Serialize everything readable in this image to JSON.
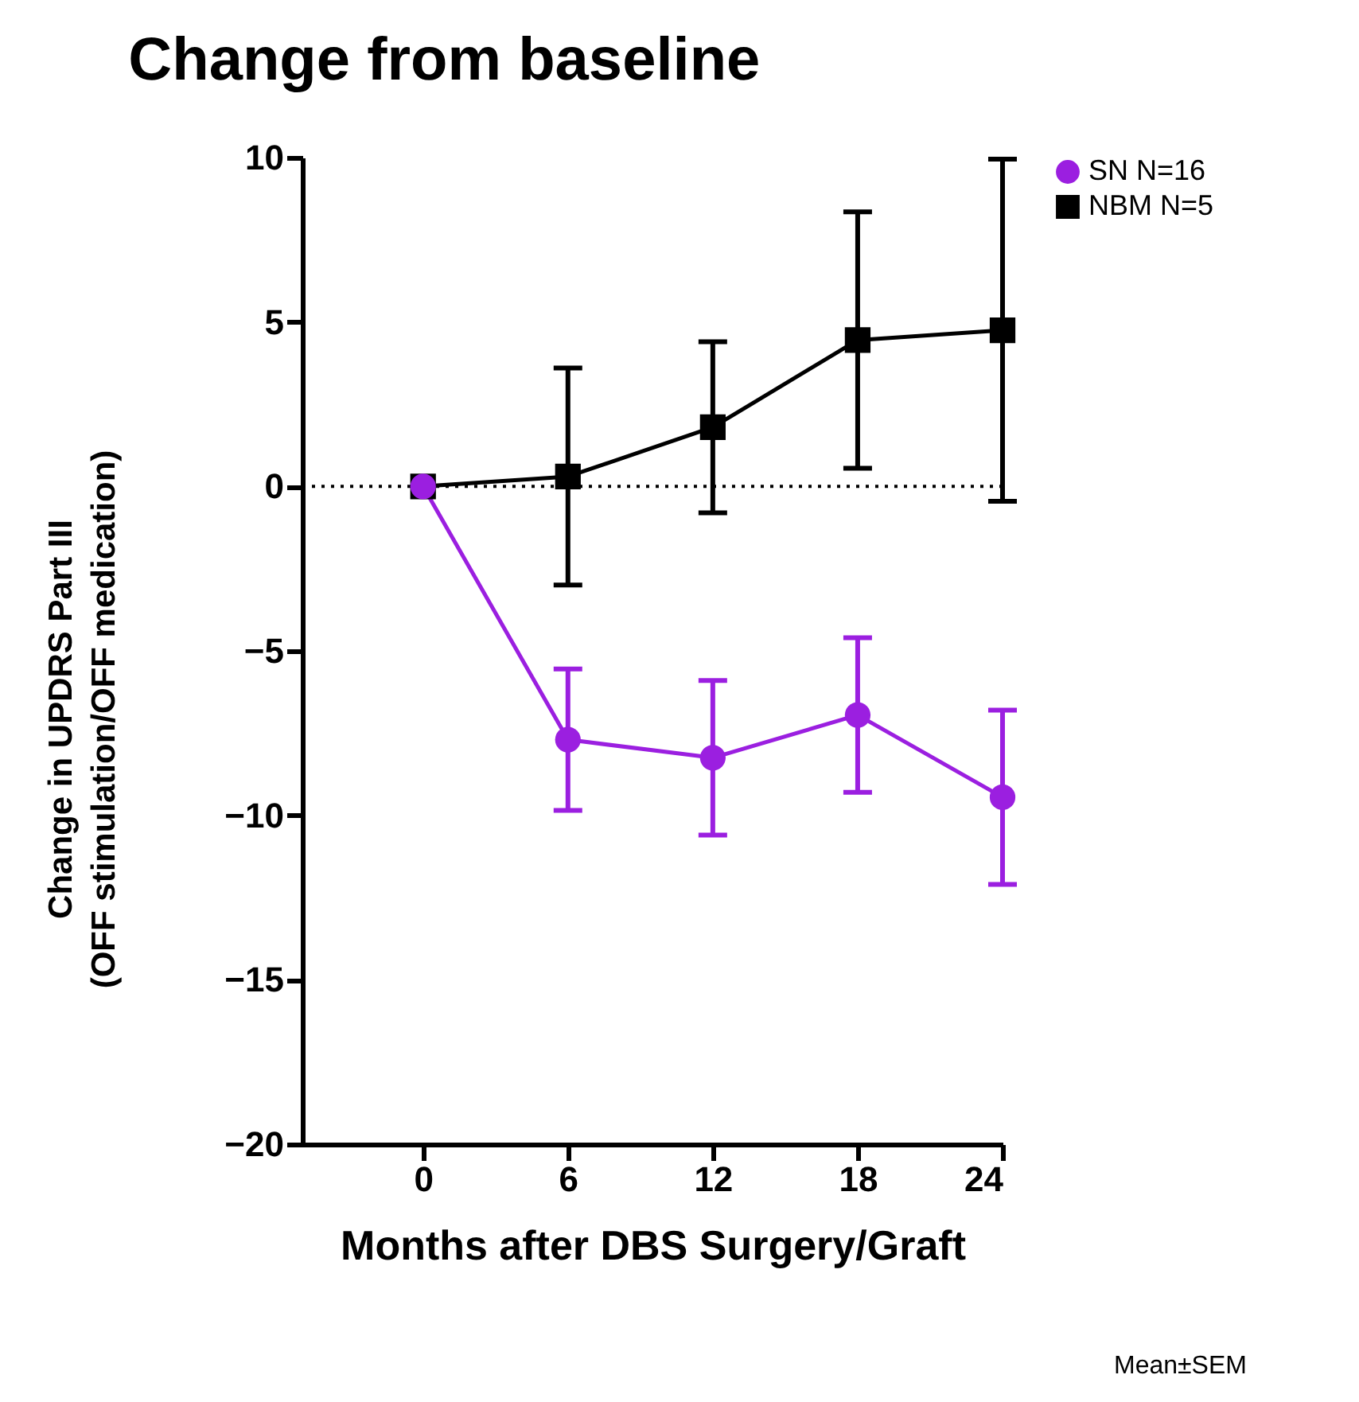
{
  "chart_data": {
    "type": "line",
    "title": "Change from baseline",
    "xlabel": "Months after DBS Surgery/Graft",
    "ylabel": "Change in UPDRS Part III\n(OFF stimulation/OFF medication)",
    "x": [
      0,
      6,
      12,
      18,
      24
    ],
    "series": [
      {
        "name": "SN N=16",
        "color": "#9b1fe0",
        "marker": "circle",
        "values": [
          0,
          -7.7,
          -8.25,
          -6.95,
          -9.45
        ],
        "errors": [
          null,
          2.15,
          2.35,
          2.35,
          2.65
        ]
      },
      {
        "name": "NBM N=5",
        "color": "#000000",
        "marker": "square",
        "values": [
          0,
          0.3,
          1.8,
          4.45,
          4.75
        ],
        "errors": [
          null,
          3.3,
          2.6,
          3.9,
          5.2
        ]
      }
    ],
    "xlim": [
      -5,
      24
    ],
    "xticks": [
      0,
      6,
      12,
      18,
      24
    ],
    "ylim": [
      -20,
      10
    ],
    "yticks": [
      -20,
      -15,
      -10,
      -5,
      0,
      5,
      10
    ],
    "ref_lines": [
      {
        "axis": "y",
        "value": 0,
        "line_style": "dotted",
        "color": "#000000"
      }
    ],
    "grid": false,
    "legend": "top right",
    "annotations": [
      "Mean±SEM"
    ]
  }
}
